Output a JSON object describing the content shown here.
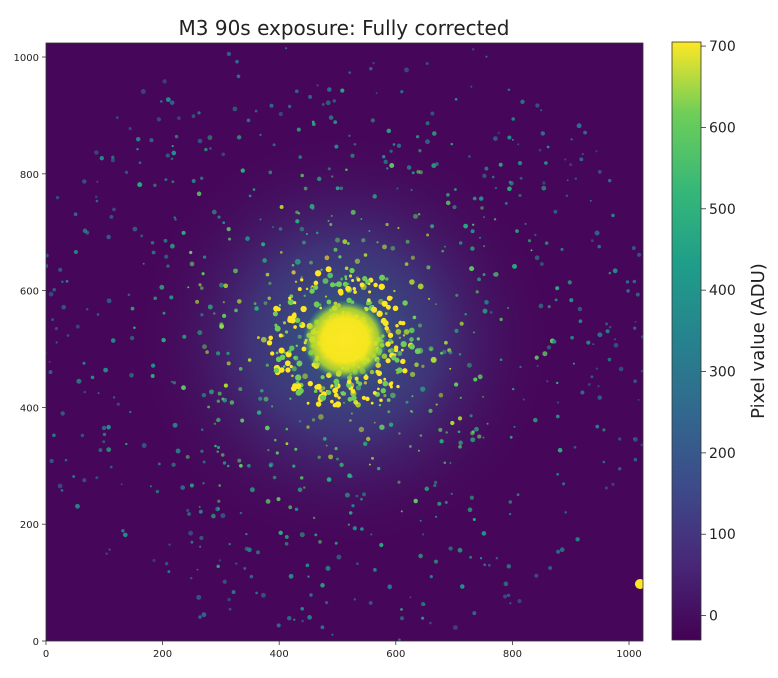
{
  "title": "M3 90s exposure: Fully corrected",
  "image": {
    "description_colormap": "viridis",
    "x_ticks": [
      0,
      200,
      400,
      600,
      800,
      1000
    ],
    "y_ticks": [
      0,
      200,
      400,
      600,
      800,
      1000
    ],
    "x_range": [
      0,
      1024
    ],
    "y_range": [
      0,
      1024
    ],
    "background_color": "#46075a",
    "core_color": "#f5e61f"
  },
  "colorbar": {
    "label": "Pixel value (ADU)",
    "ticks": [
      0,
      100,
      200,
      300,
      400,
      500,
      600,
      700
    ],
    "range": [
      -30,
      705
    ]
  }
}
